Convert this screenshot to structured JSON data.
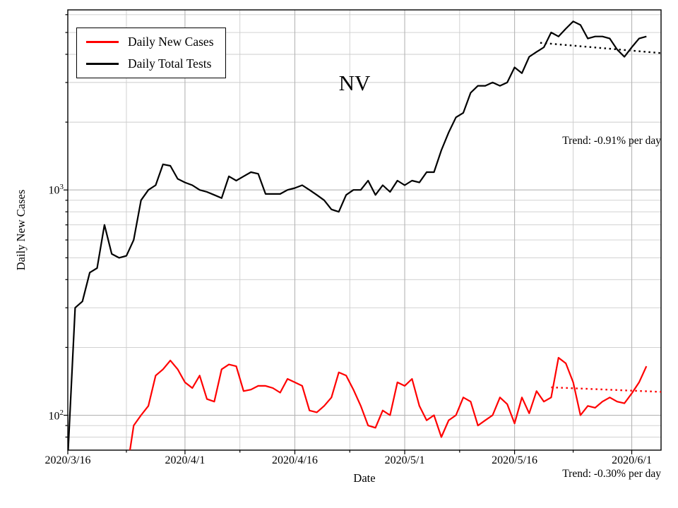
{
  "figure": {
    "title": "NV",
    "xlabel": "Date",
    "ylabel": "Daily New Cases"
  },
  "legend": {
    "items": [
      {
        "label": "Daily New Cases",
        "color": "#ff0000"
      },
      {
        "label": "Daily Total Tests",
        "color": "#000000"
      }
    ]
  },
  "annotations": {
    "trend_tests": "Trend: -0.91% per day",
    "trend_cases": "Trend: -0.30% per day"
  },
  "axes": {
    "x_tick_labels": [
      "2020/3/16",
      "2020/4/1",
      "2020/4/16",
      "2020/5/1",
      "2020/5/16",
      "2020/6/1"
    ],
    "y_tick_labels": [
      {
        "base": "10",
        "exp": "2"
      },
      {
        "base": "10",
        "exp": "3"
      }
    ]
  },
  "chart_data": {
    "type": "line",
    "title": "NV",
    "xlabel": "Date",
    "ylabel": "Daily New Cases",
    "y_scale": "log",
    "grid": true,
    "legend_position": "upper left",
    "ylim": [
      70,
      6300
    ],
    "xlim_days": [
      0,
      81
    ],
    "x_ticks": [
      {
        "label": "2020/3/16",
        "day": 0
      },
      {
        "label": "2020/4/1",
        "day": 16
      },
      {
        "label": "2020/4/16",
        "day": 31
      },
      {
        "label": "2020/5/1",
        "day": 46
      },
      {
        "label": "2020/5/16",
        "day": 61
      },
      {
        "label": "2020/6/1",
        "day": 77
      }
    ],
    "x_minor_days": [
      8,
      23.5,
      38.5,
      53.5,
      69
    ],
    "y_major_gridlines": [
      100,
      1000
    ],
    "y_minor_gridlines": [
      80,
      90,
      200,
      300,
      400,
      500,
      600,
      700,
      800,
      900,
      2000,
      3000,
      4000,
      5000,
      6000
    ],
    "series": [
      {
        "name": "Daily New Cases",
        "color": "#ff0000",
        "start_day": 8,
        "values": [
          55,
          90,
          100,
          110,
          150,
          160,
          175,
          160,
          140,
          132,
          150,
          118,
          115,
          160,
          168,
          165,
          128,
          130,
          135,
          135,
          132,
          126,
          145,
          140,
          135,
          105,
          103,
          110,
          120,
          155,
          150,
          130,
          110,
          90,
          88,
          105,
          100,
          140,
          135,
          145,
          110,
          95,
          100,
          80,
          95,
          100,
          120,
          115,
          90,
          95,
          100,
          120,
          112,
          92,
          120,
          102,
          128,
          115,
          120,
          180,
          170,
          140,
          100,
          110,
          108,
          115,
          120,
          115,
          113,
          125,
          140,
          165
        ]
      },
      {
        "name": "Daily Total Tests",
        "color": "#000000",
        "start_day": 0,
        "values": [
          65,
          300,
          320,
          430,
          450,
          700,
          520,
          500,
          510,
          600,
          900,
          1000,
          1050,
          1300,
          1280,
          1120,
          1080,
          1050,
          1000,
          980,
          950,
          920,
          1150,
          1100,
          1150,
          1200,
          1180,
          960,
          960,
          960,
          1000,
          1020,
          1050,
          1000,
          950,
          900,
          820,
          800,
          950,
          1000,
          1000,
          1100,
          950,
          1050,
          980,
          1100,
          1050,
          1100,
          1080,
          1200,
          1200,
          1500,
          1800,
          2100,
          2200,
          2700,
          2900,
          2900,
          3000,
          2900,
          3000,
          3500,
          3300,
          3900,
          4100,
          4300,
          5000,
          4800,
          5200,
          5600,
          5400,
          4700,
          4800,
          4800,
          4700,
          4200,
          3900,
          4300,
          4700,
          4800
        ]
      }
    ],
    "trend_lines": [
      {
        "label": "Trend: -0.91% per day",
        "color": "#000000",
        "x1_day": 64.5,
        "y1": 4500,
        "x2_day": 81,
        "y2": 4050
      },
      {
        "label": "Trend: -0.30% per day",
        "color": "#ff0000",
        "x1_day": 66,
        "y1": 133,
        "x2_day": 81,
        "y2": 127
      }
    ]
  }
}
